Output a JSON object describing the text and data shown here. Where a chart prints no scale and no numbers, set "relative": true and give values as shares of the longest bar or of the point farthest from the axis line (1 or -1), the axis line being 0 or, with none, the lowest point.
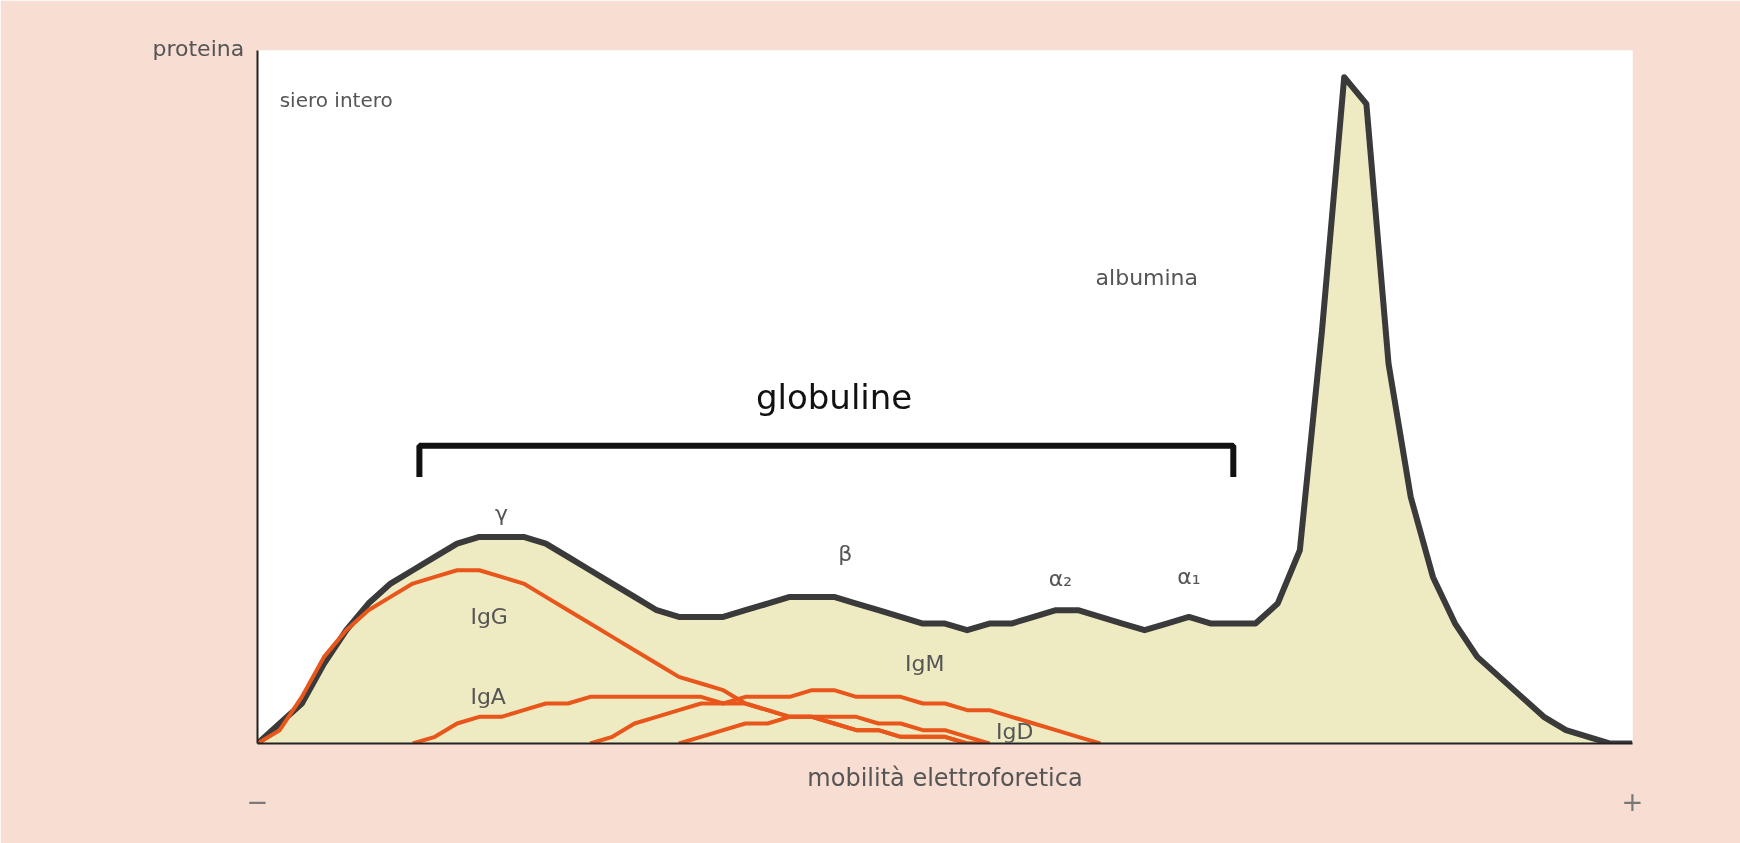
{
  "chart_data": {
    "type": "area",
    "relative": true,
    "ylabel": "proteina",
    "xlabel": "mobilità elettroforetica",
    "categories": [
      null,
      null,
      null,
      null,
      null,
      null,
      null,
      null,
      null,
      null,
      null,
      null,
      null,
      null,
      null,
      null,
      null,
      null,
      null,
      null,
      null,
      null,
      null,
      null,
      null,
      null,
      null,
      null,
      null,
      null,
      null,
      null,
      null,
      null,
      null,
      null,
      null,
      null,
      null,
      null,
      null,
      null,
      null,
      null,
      null,
      null,
      null,
      null,
      null,
      null,
      null,
      null,
      null,
      null,
      null,
      null,
      null,
      null,
      null,
      null,
      null,
      null,
      null
    ],
    "annotations": [
      "siero intero",
      "globuline",
      "γ",
      "β",
      "α₂",
      "α₁",
      "albumina",
      "−",
      "+"
    ],
    "series": [
      {
        "color": "#3a3a3a",
        "values": [
          0.0,
          0.03,
          0.06,
          0.12,
          0.17,
          0.21,
          0.24,
          0.26,
          0.28,
          0.3,
          0.31,
          0.31,
          0.31,
          0.3,
          0.28,
          0.26,
          0.24,
          0.22,
          0.2,
          0.19,
          0.19,
          0.19,
          0.2,
          0.21,
          0.22,
          0.22,
          0.22,
          0.21,
          0.2,
          0.19,
          0.18,
          0.18,
          0.17,
          0.18,
          0.18,
          0.19,
          0.2,
          0.2,
          0.19,
          0.18,
          0.17,
          0.18,
          0.19,
          0.18,
          0.18,
          0.18,
          0.21,
          0.29,
          0.62,
          1.0,
          0.96,
          0.57,
          0.37,
          0.25,
          0.18,
          0.13,
          0.1,
          0.07,
          0.04,
          0.02,
          0.01,
          0.0,
          0.0
        ]
      },
      {
        "type": "line",
        "name": "IgG",
        "color": "#e8561c",
        "values": [
          0.0,
          0.02,
          0.07,
          0.13,
          0.17,
          0.2,
          0.22,
          0.24,
          0.25,
          0.26,
          0.26,
          0.25,
          0.24,
          0.22,
          0.2,
          0.18,
          0.16,
          0.14,
          0.12,
          0.1,
          0.09,
          0.08,
          0.06,
          0.05,
          0.04,
          0.04,
          0.03,
          0.02,
          0.02,
          0.01,
          0.01,
          0.01,
          0.0,
          0.0,
          null,
          null,
          null,
          null,
          null,
          null,
          null,
          null,
          null,
          null,
          null,
          null,
          null,
          null,
          null,
          null,
          null,
          null,
          null,
          null,
          null,
          null,
          null,
          null,
          null,
          null,
          null,
          null,
          null
        ]
      },
      {
        "type": "line",
        "name": "IgA",
        "color": "#e8561c",
        "values": [
          null,
          null,
          null,
          null,
          null,
          null,
          null,
          0.0,
          0.01,
          0.03,
          0.04,
          0.04,
          0.05,
          0.06,
          0.06,
          0.07,
          0.07,
          0.07,
          0.07,
          0.07,
          0.07,
          0.06,
          0.06,
          0.05,
          0.04,
          0.04,
          0.03,
          0.02,
          0.02,
          0.01,
          0.01,
          0.01,
          0.0,
          0.0,
          null,
          null,
          null,
          null,
          null,
          null,
          null,
          null,
          null,
          null,
          null,
          null,
          null,
          null,
          null,
          null,
          null,
          null,
          null,
          null,
          null,
          null,
          null,
          null,
          null,
          null,
          null,
          null,
          null
        ]
      },
      {
        "type": "line",
        "name": "IgM",
        "color": "#e8561c",
        "values": [
          null,
          null,
          null,
          null,
          null,
          null,
          null,
          null,
          null,
          null,
          null,
          null,
          null,
          null,
          null,
          0.0,
          0.01,
          0.03,
          0.04,
          0.05,
          0.06,
          0.06,
          0.07,
          0.07,
          0.07,
          0.08,
          0.08,
          0.07,
          0.07,
          0.07,
          0.06,
          0.06,
          0.05,
          0.05,
          0.04,
          0.03,
          0.02,
          0.01,
          0.0,
          null,
          null,
          null,
          null,
          null,
          null,
          null,
          null,
          null,
          null,
          null,
          null,
          null,
          null,
          null,
          null,
          null,
          null,
          null,
          null,
          null,
          null,
          null,
          null
        ]
      },
      {
        "type": "line",
        "name": "IgD",
        "color": "#e8561c",
        "values": [
          null,
          null,
          null,
          null,
          null,
          null,
          null,
          null,
          null,
          null,
          null,
          null,
          null,
          null,
          null,
          null,
          null,
          null,
          null,
          0.0,
          0.01,
          0.02,
          0.03,
          0.03,
          0.04,
          0.04,
          0.04,
          0.04,
          0.03,
          0.03,
          0.02,
          0.02,
          0.01,
          0.0,
          null,
          null,
          null,
          null,
          null,
          null,
          null,
          null,
          null,
          null,
          null,
          null,
          null,
          null,
          null,
          null,
          null,
          null,
          null,
          null,
          null,
          null,
          null,
          null,
          null,
          null,
          null,
          null,
          null
        ]
      }
    ],
    "legend": false
  }
}
